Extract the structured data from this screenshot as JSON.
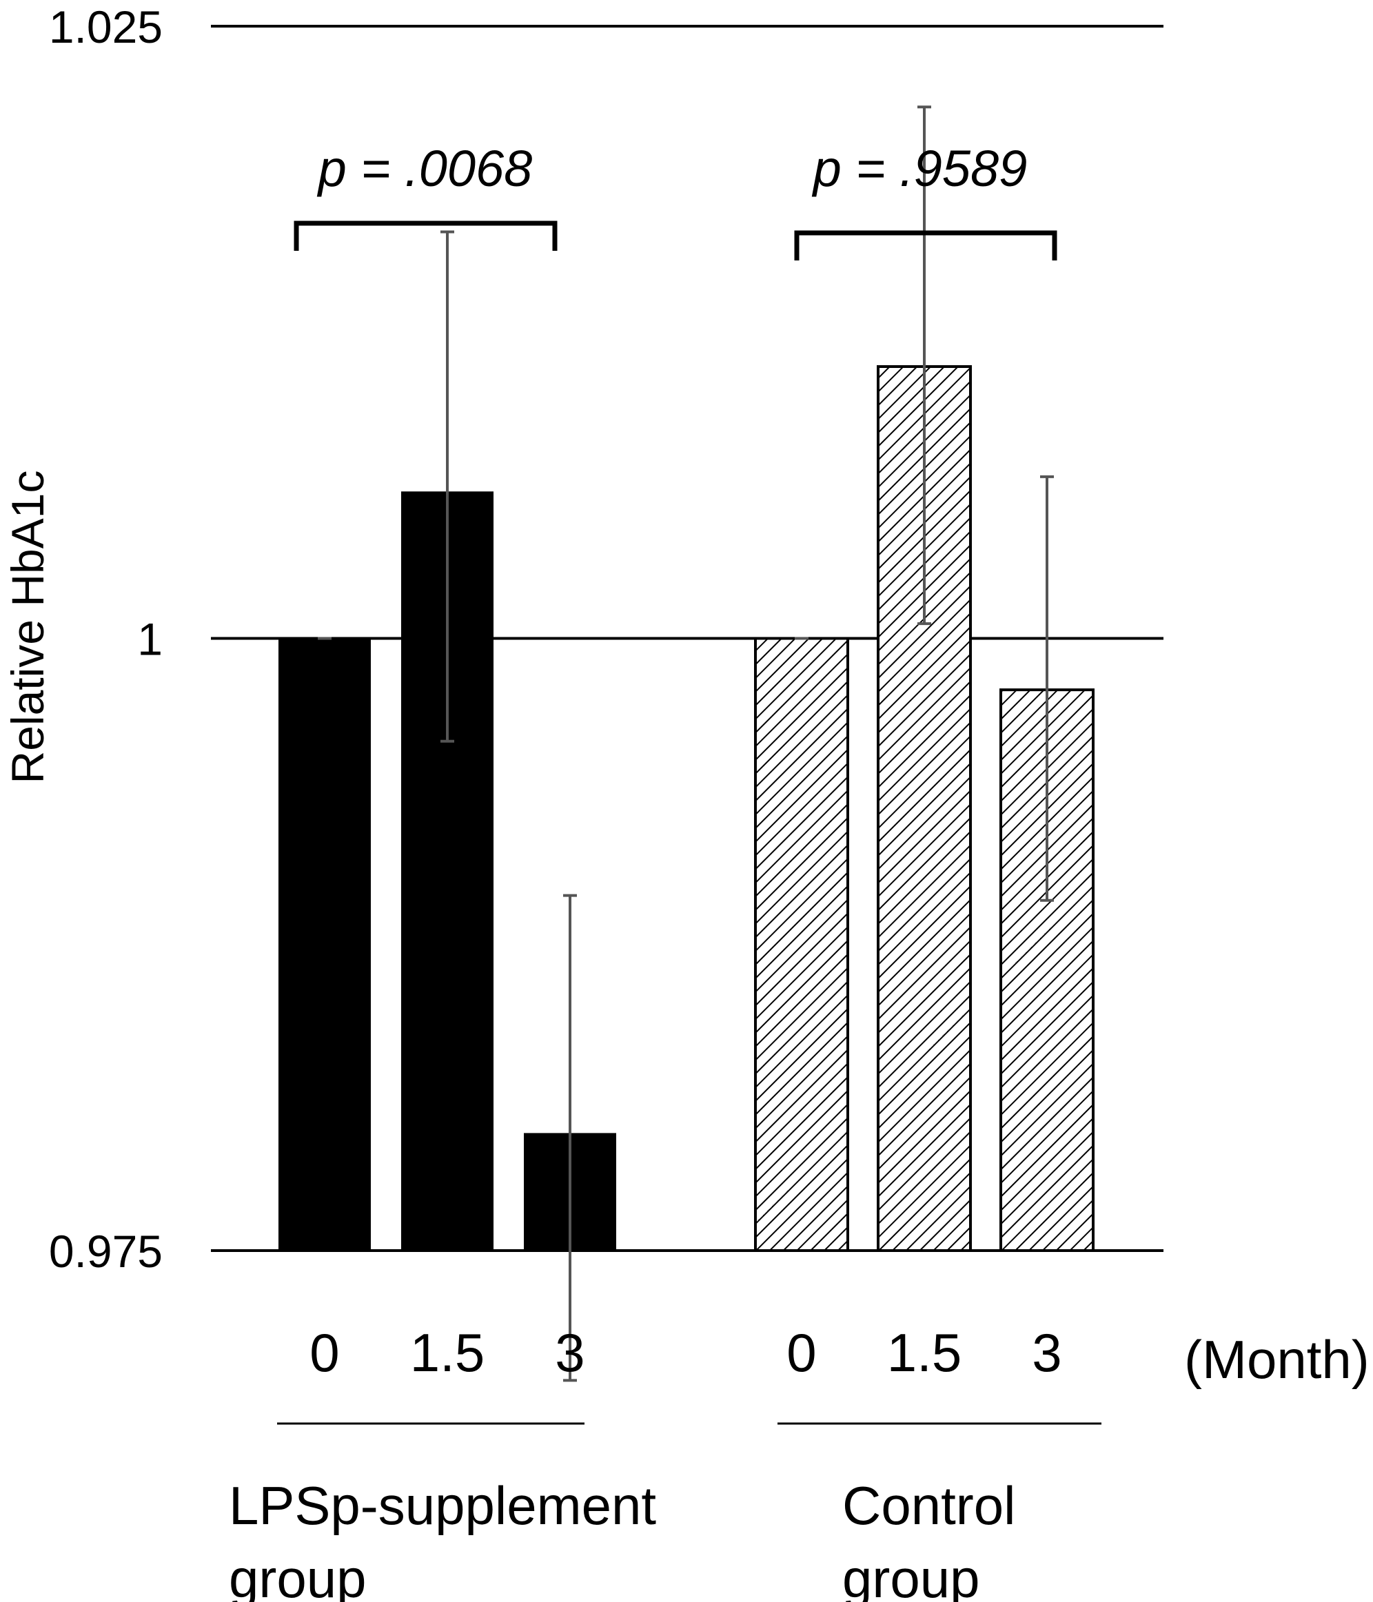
{
  "chart_data": {
    "type": "bar",
    "title": "",
    "ylabel": "Relative HbA1c",
    "xlabel": "(Month)",
    "ylim": [
      0.975,
      1.025
    ],
    "yticks": [
      "1.025",
      "1",
      "0.975"
    ],
    "ytick_values": [
      1.025,
      1.0,
      0.975
    ],
    "grid": true,
    "groups": [
      {
        "name_line1": "LPSp-supplement",
        "name_line2": "group",
        "pattern": "solid",
        "color": "#000000",
        "categories": [
          "0",
          "1.5",
          "3"
        ],
        "values": [
          1.0,
          1.006,
          0.9798
        ],
        "err_low": [
          1.0,
          0.9958,
          0.9697
        ],
        "err_high": [
          1.0,
          1.0166,
          0.9895
        ],
        "p_value": "p = .0068"
      },
      {
        "name_line1": "Control",
        "name_line2": "group",
        "pattern": "hatch",
        "color": "#000000",
        "categories": [
          "0",
          "1.5",
          "3"
        ],
        "values": [
          1.0,
          1.0111,
          0.9979
        ],
        "err_low": [
          1.0,
          1.0006,
          0.9893
        ],
        "err_high": [
          1.0,
          1.0217,
          1.0066
        ],
        "p_value": "p = .9589"
      }
    ]
  },
  "colors": {
    "errorbar": "#555555",
    "axis": "#000000",
    "background": "#ffffff"
  }
}
